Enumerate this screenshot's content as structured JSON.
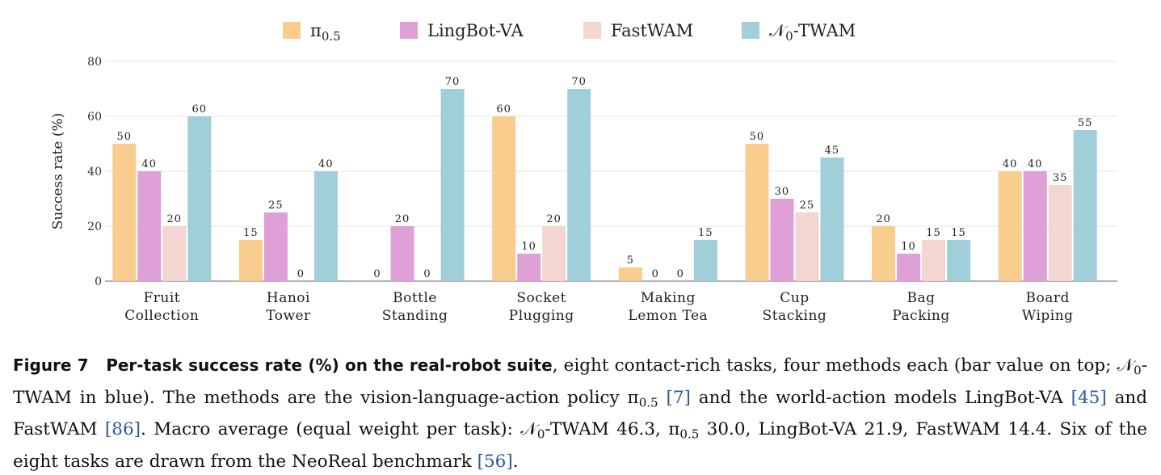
{
  "chart_data": {
    "type": "bar",
    "categories": [
      [
        "Fruit",
        "Collection"
      ],
      [
        "Hanoi",
        "Tower"
      ],
      [
        "Bottle",
        "Standing"
      ],
      [
        "Socket",
        "Plugging"
      ],
      [
        "Making",
        "Lemon Tea"
      ],
      [
        "Cup",
        "Stacking"
      ],
      [
        "Bag",
        "Packing"
      ],
      [
        "Board",
        "Wiping"
      ]
    ],
    "series": [
      {
        "name": "π0.5",
        "name_main": "π",
        "name_sub": "0.5",
        "color": "#f8cd8e",
        "values": [
          50,
          15,
          0,
          60,
          5,
          50,
          20,
          40
        ]
      },
      {
        "name": "LingBot-VA",
        "name_main": "LingBot-VA",
        "name_sub": "",
        "color": "#dfa0d8",
        "values": [
          40,
          25,
          20,
          10,
          0,
          30,
          10,
          40
        ]
      },
      {
        "name": "FastWAM",
        "name_main": "FastWAM",
        "name_sub": "",
        "color": "#f3d6cf",
        "values": [
          20,
          0,
          0,
          20,
          0,
          25,
          15,
          35
        ]
      },
      {
        "name": "N0-TWAM",
        "name_main": "𝒩",
        "name_sub": "0",
        "name_rest": "-TWAM",
        "color": "#a0cfd9",
        "values": [
          60,
          40,
          70,
          70,
          15,
          45,
          15,
          55
        ]
      }
    ],
    "ylabel": "Success rate (%)",
    "ylim": [
      0,
      80
    ],
    "yticks": [
      0,
      20,
      40,
      60,
      80
    ],
    "grid": true,
    "legend": "top"
  },
  "caption": {
    "label": "Figure 7",
    "bold_title": "Per-task success rate (%) on the real-robot suite",
    "t1": ", eight contact-rich tasks, four methods each (bar value on top; ",
    "n0": "𝒩",
    "n0_sub": "0",
    "t2": "-TWAM in blue). The methods are the vision-language-action policy ",
    "pi": "π",
    "pi_sub": "0.5",
    "cite1": "[7]",
    "t3": " and the world-action models LingBot-VA ",
    "cite2": "[45]",
    "t4": " and FastWAM ",
    "cite3": "[86]",
    "t5": ". Macro average (equal weight per task): ",
    "t6": "-TWAM 46.3, ",
    "t7": " 30.0, LingBot-VA 21.9, FastWAM 14.4. Six of the eight tasks are drawn from the NeoReal benchmark ",
    "cite4": "[56]",
    "t8": "."
  }
}
